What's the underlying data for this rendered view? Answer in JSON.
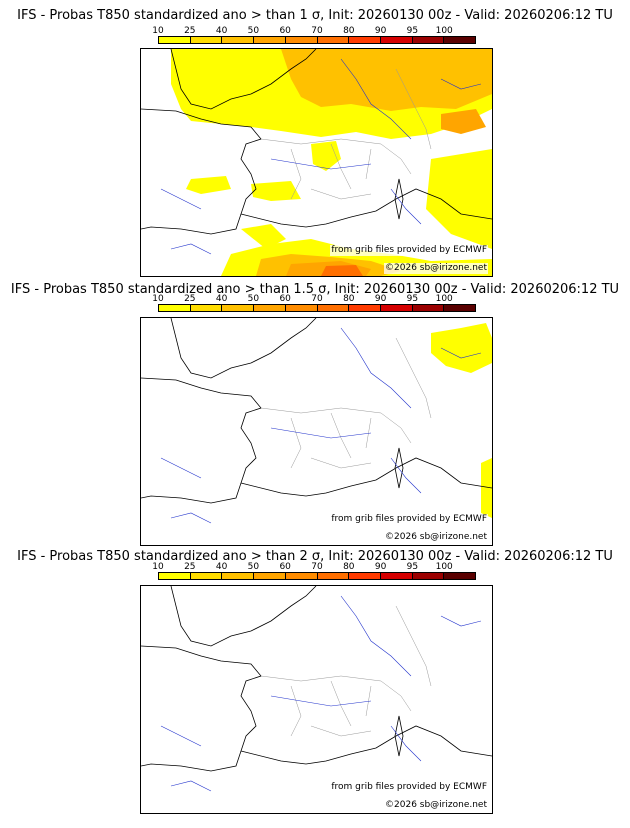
{
  "colorbar": {
    "ticks": [
      "10",
      "25",
      "40",
      "50",
      "60",
      "70",
      "80",
      "90",
      "95",
      "100"
    ],
    "colors": [
      "#ffff00",
      "#ffdd00",
      "#ffc100",
      "#ffa500",
      "#ff8c00",
      "#ff6f00",
      "#ff3b00",
      "#d50000",
      "#9b0000",
      "#5a0000"
    ]
  },
  "panels": [
    {
      "title": "IFS - Probas T850  standardized ano > than 1 σ, Init: 20260130 00z - Valid: 20260206:12 TU",
      "credit_source": "from grib files provided by ECMWF",
      "credit_copyright": "©2026 sb@irizone.net"
    },
    {
      "title": "IFS - Probas T850  standardized ano > than 1.5 σ, Init: 20260130 00z - Valid: 20260206:12 TU",
      "credit_source": "from grib files provided by ECMWF",
      "credit_copyright": "©2026 sb@irizone.net"
    },
    {
      "title": "IFS - Probas T850  standardized ano > than 2 σ, Init: 20260130 00z - Valid: 20260206:12 TU",
      "credit_source": "from grib files provided by ECMWF",
      "credit_copyright": "©2026 sb@irizone.net"
    }
  ]
}
